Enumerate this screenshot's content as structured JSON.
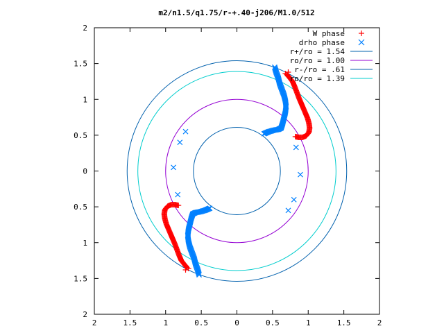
{
  "chart_data": {
    "type": "scatter",
    "title": "m2/n1.5/q1.75/r-+.40-j206/M1.0/512",
    "xlim": [
      -2,
      2
    ],
    "ylim": [
      -2,
      2
    ],
    "x_tick_labels": [
      "2",
      "1.5",
      "1",
      "0.5",
      "0",
      "0.5",
      "1",
      "1.5",
      "2"
    ],
    "y_tick_labels": [
      "2",
      "1.5",
      "1",
      "0.5",
      "0",
      "0.5",
      "1",
      "1.5",
      "2"
    ],
    "tick_values": [
      -2,
      -1.5,
      -1,
      -0.5,
      0,
      0.5,
      1,
      1.5,
      2
    ],
    "grid": false,
    "legend_position": "top-right",
    "series": [
      {
        "name": "W phase",
        "marker": "plus",
        "color": "#ff0000",
        "arms": [
          [
            [
              0.7,
              1.35
            ],
            [
              0.74,
              1.3
            ],
            [
              0.78,
              1.25
            ],
            [
              0.81,
              1.18
            ],
            [
              0.84,
              1.1
            ],
            [
              0.87,
              1.02
            ],
            [
              0.9,
              0.95
            ],
            [
              0.93,
              0.88
            ],
            [
              0.96,
              0.81
            ],
            [
              0.99,
              0.74
            ],
            [
              1.01,
              0.67
            ],
            [
              1.02,
              0.6
            ],
            [
              1.01,
              0.54
            ],
            [
              0.97,
              0.49
            ],
            [
              0.92,
              0.47
            ],
            [
              0.87,
              0.47
            ],
            [
              0.82,
              0.48
            ]
          ],
          [
            [
              -0.7,
              -1.35
            ],
            [
              -0.74,
              -1.3
            ],
            [
              -0.78,
              -1.25
            ],
            [
              -0.81,
              -1.18
            ],
            [
              -0.84,
              -1.1
            ],
            [
              -0.87,
              -1.02
            ],
            [
              -0.9,
              -0.95
            ],
            [
              -0.93,
              -0.88
            ],
            [
              -0.96,
              -0.81
            ],
            [
              -0.99,
              -0.74
            ],
            [
              -1.01,
              -0.67
            ],
            [
              -1.02,
              -0.6
            ],
            [
              -1.01,
              -0.54
            ],
            [
              -0.97,
              -0.49
            ],
            [
              -0.92,
              -0.47
            ],
            [
              -0.87,
              -0.47
            ],
            [
              -0.82,
              -0.48
            ]
          ]
        ],
        "scatter": [
          [
            0.72,
            1.38
          ],
          [
            0.68,
            1.36
          ],
          [
            -0.72,
            -1.38
          ],
          [
            -0.68,
            -1.36
          ]
        ]
      },
      {
        "name": "drho phase",
        "marker": "cross",
        "color": "#0080ff",
        "arms": [
          [
            [
              0.53,
              1.45
            ],
            [
              0.55,
              1.38
            ],
            [
              0.58,
              1.3
            ],
            [
              0.6,
              1.22
            ],
            [
              0.63,
              1.14
            ],
            [
              0.66,
              1.06
            ],
            [
              0.68,
              0.98
            ],
            [
              0.69,
              0.9
            ],
            [
              0.68,
              0.82
            ],
            [
              0.66,
              0.74
            ],
            [
              0.64,
              0.66
            ],
            [
              0.62,
              0.6
            ],
            [
              0.58,
              0.58
            ],
            [
              0.52,
              0.57
            ],
            [
              0.45,
              0.55
            ],
            [
              0.38,
              0.52
            ]
          ],
          [
            [
              -0.53,
              -1.45
            ],
            [
              -0.55,
              -1.38
            ],
            [
              -0.58,
              -1.3
            ],
            [
              -0.6,
              -1.22
            ],
            [
              -0.63,
              -1.14
            ],
            [
              -0.66,
              -1.06
            ],
            [
              -0.68,
              -0.98
            ],
            [
              -0.69,
              -0.9
            ],
            [
              -0.68,
              -0.82
            ],
            [
              -0.66,
              -0.74
            ],
            [
              -0.64,
              -0.66
            ],
            [
              -0.62,
              -0.6
            ],
            [
              -0.58,
              -0.58
            ],
            [
              -0.52,
              -0.57
            ],
            [
              -0.45,
              -0.55
            ],
            [
              -0.38,
              -0.52
            ]
          ]
        ],
        "scatter": [
          [
            0.83,
            0.33
          ],
          [
            0.89,
            -0.05
          ],
          [
            0.8,
            -0.4
          ],
          [
            0.72,
            -0.55
          ],
          [
            -0.83,
            -0.33
          ],
          [
            -0.89,
            0.05
          ],
          [
            -0.8,
            0.4
          ],
          [
            -0.72,
            0.55
          ]
        ]
      },
      {
        "name": "r+/ro = 1.54",
        "type": "circle",
        "radius": 1.54,
        "color": "#0060ad"
      },
      {
        "name": "ro/ro = 1.00",
        "type": "circle",
        "radius": 1.0,
        "color": "#9400d3"
      },
      {
        "name": "r-/ro = .61",
        "type": "circle",
        "radius": 0.61,
        "color": "#0060ad"
      },
      {
        "name": "ro/ro = 1.39",
        "type": "circle",
        "radius": 1.39,
        "color": "#00cdcd"
      }
    ]
  }
}
